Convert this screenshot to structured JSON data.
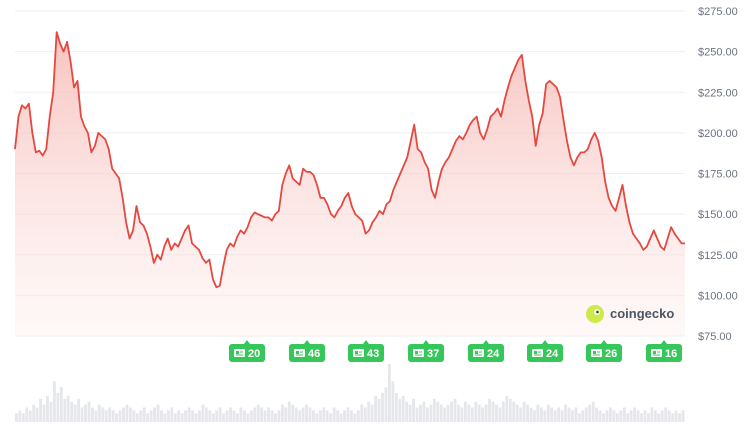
{
  "chart_data": {
    "type": "area",
    "title": "",
    "xlabel": "",
    "ylabel": "",
    "ylim": [
      75,
      275
    ],
    "y_ticks": [
      "$75.00",
      "$100.00",
      "$125.00",
      "$150.00",
      "$175.00",
      "$200.00",
      "$225.00",
      "$250.00",
      "$275.00"
    ],
    "y_tick_values": [
      75,
      100,
      125,
      150,
      175,
      200,
      225,
      250,
      275
    ],
    "grid": true,
    "legend": "none",
    "series": [
      {
        "values": [
          190,
          210,
          217,
          215,
          218,
          200,
          188,
          189,
          186,
          190,
          210,
          225,
          262,
          255,
          250,
          256,
          244,
          228,
          232,
          210,
          204,
          200,
          188,
          192,
          200,
          198,
          196,
          190,
          178,
          175,
          172,
          160,
          145,
          135,
          140,
          155,
          145,
          143,
          138,
          130,
          120,
          125,
          122,
          130,
          135,
          128,
          132,
          130,
          135,
          140,
          143,
          132,
          130,
          128,
          123,
          120,
          122,
          110,
          105,
          106,
          118,
          128,
          132,
          130,
          136,
          140,
          138,
          142,
          148,
          151,
          150,
          149,
          148,
          148,
          146,
          150,
          152,
          168,
          175,
          180,
          172,
          170,
          168,
          178,
          176,
          176,
          174,
          168,
          160,
          160,
          156,
          150,
          148,
          152,
          155,
          160,
          163,
          155,
          150,
          148,
          146,
          138,
          140,
          145,
          148,
          152,
          150,
          156,
          158,
          165,
          170,
          175,
          180,
          185,
          195,
          205,
          190,
          188,
          182,
          178,
          165,
          160,
          170,
          178,
          182,
          185,
          190,
          195,
          198,
          196,
          200,
          205,
          208,
          210,
          200,
          196,
          202,
          210,
          212,
          215,
          210,
          220,
          228,
          235,
          240,
          245,
          248,
          232,
          220,
          210,
          192,
          205,
          212,
          230,
          232,
          230,
          228,
          222,
          208,
          195,
          185,
          180,
          185,
          188,
          188,
          190,
          196,
          200,
          195,
          185,
          170,
          160,
          155,
          152,
          160,
          168,
          155,
          145,
          138,
          135,
          132,
          128,
          130,
          135,
          140,
          135,
          130,
          128,
          135,
          142,
          138,
          135,
          132,
          132
        ]
      }
    ],
    "news_badges": [
      "20",
      "46",
      "43",
      "37",
      "24",
      "24",
      "26",
      "16"
    ],
    "volume_bars": [
      3,
      4,
      3,
      5,
      4,
      6,
      5,
      8,
      6,
      9,
      7,
      14,
      10,
      12,
      8,
      9,
      7,
      6,
      8,
      5,
      6,
      7,
      5,
      4,
      6,
      5,
      4,
      5,
      4,
      3,
      4,
      5,
      6,
      5,
      4,
      3,
      4,
      5,
      3,
      4,
      5,
      6,
      4,
      3,
      4,
      5,
      3,
      4,
      3,
      4,
      5,
      4,
      3,
      4,
      6,
      5,
      4,
      3,
      4,
      5,
      3,
      4,
      5,
      4,
      3,
      5,
      4,
      3,
      4,
      5,
      6,
      5,
      4,
      5,
      4,
      3,
      4,
      6,
      5,
      7,
      6,
      5,
      4,
      5,
      6,
      5,
      4,
      3,
      4,
      5,
      4,
      3,
      5,
      4,
      3,
      4,
      5,
      4,
      3,
      4,
      6,
      5,
      7,
      6,
      9,
      8,
      10,
      12,
      20,
      14,
      10,
      8,
      9,
      7,
      6,
      8,
      5,
      6,
      7,
      5,
      6,
      8,
      7,
      6,
      5,
      6,
      7,
      8,
      6,
      5,
      7,
      6,
      5,
      7,
      6,
      5,
      6,
      8,
      7,
      6,
      5,
      7,
      9,
      8,
      7,
      6,
      5,
      7,
      6,
      5,
      4,
      6,
      5,
      4,
      6,
      5,
      4,
      5,
      4,
      6,
      5,
      4,
      5,
      3,
      4,
      5,
      6,
      7,
      5,
      4,
      3,
      4,
      5,
      4,
      3,
      4,
      5,
      3,
      4,
      5,
      4,
      3,
      4,
      3,
      5,
      4,
      3,
      4,
      5,
      4,
      3,
      4,
      3,
      4
    ]
  },
  "watermark": {
    "text": "coingecko"
  },
  "colors": {
    "line": "#e5483f",
    "badge": "#35c75a",
    "grid": "#eeeeee",
    "volume": "#e5e7eb"
  }
}
